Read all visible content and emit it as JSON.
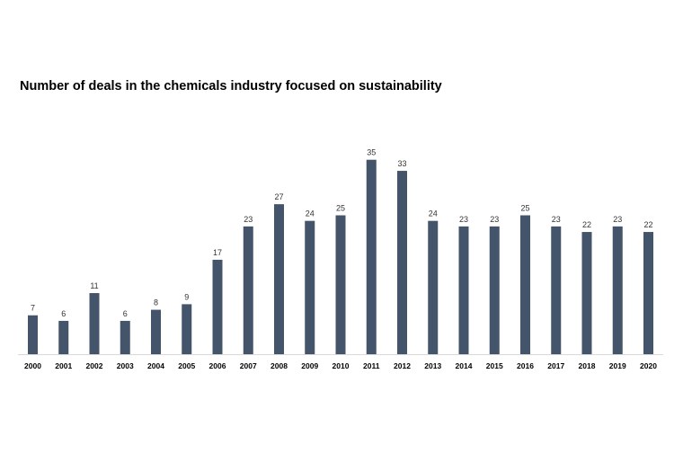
{
  "chart_data": {
    "type": "bar",
    "title": "Number of deals in the chemicals industry focused on sustainability",
    "categories": [
      "2000",
      "2001",
      "2002",
      "2003",
      "2004",
      "2005",
      "2006",
      "2007",
      "2008",
      "2009",
      "2010",
      "2011",
      "2012",
      "2013",
      "2014",
      "2015",
      "2016",
      "2017",
      "2018",
      "2019",
      "2020"
    ],
    "values": [
      7,
      6,
      11,
      6,
      8,
      9,
      17,
      23,
      27,
      24,
      25,
      35,
      33,
      24,
      23,
      23,
      25,
      23,
      22,
      23,
      22
    ],
    "data_labels": true,
    "xlabel": "",
    "ylabel": "",
    "ylim": [
      0,
      35
    ],
    "grid": false,
    "legend": "none",
    "colors": {
      "bar": "#44546a",
      "axis": "#d9d9d9",
      "label": "#333333",
      "title": "#000000"
    }
  }
}
